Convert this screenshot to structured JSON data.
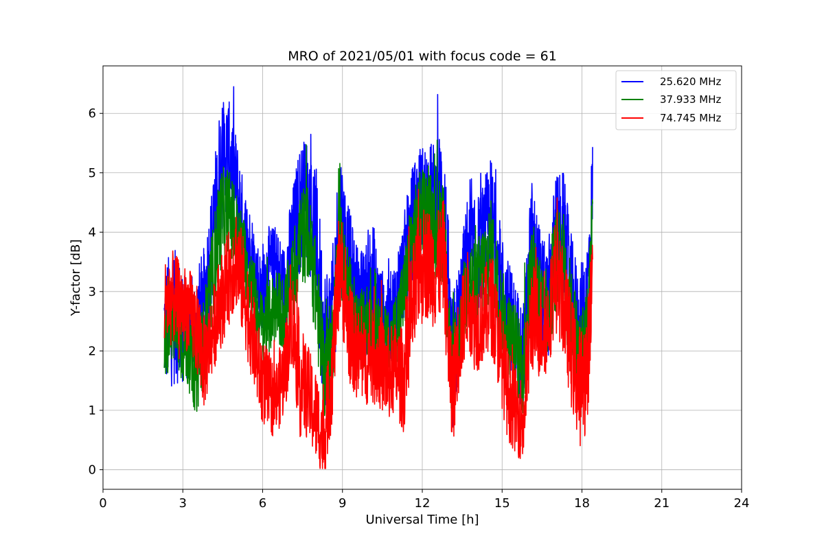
{
  "chart_data": {
    "type": "line",
    "title": "MRO of 2021/05/01 with focus code = 61",
    "xlabel": "Universal Time [h]",
    "ylabel": "Y-factor [dB]",
    "xlim": [
      0,
      24
    ],
    "ylim": [
      -0.33,
      6.8
    ],
    "x_ticks": [
      0,
      3,
      6,
      9,
      12,
      15,
      18,
      21,
      24
    ],
    "y_ticks": [
      0,
      1,
      2,
      3,
      4,
      5,
      6
    ],
    "grid": true,
    "legend_position": "top-right",
    "series": [
      {
        "name": "25.620 MHz",
        "color": "#0000ff",
        "x": [
          2.3,
          2.6,
          2.9,
          3.2,
          3.5,
          3.8,
          4.1,
          4.4,
          4.7,
          5.0,
          5.3,
          5.6,
          5.9,
          6.2,
          6.5,
          6.8,
          7.1,
          7.4,
          7.7,
          8.0,
          8.3,
          8.6,
          8.9,
          9.2,
          9.5,
          9.8,
          10.1,
          10.4,
          10.7,
          11.0,
          11.3,
          11.6,
          11.9,
          12.2,
          12.5,
          12.8,
          13.1,
          13.4,
          13.7,
          14.0,
          14.3,
          14.6,
          14.9,
          15.2,
          15.5,
          15.8,
          16.1,
          16.4,
          16.7,
          17.0,
          17.3,
          17.6,
          17.9,
          18.2,
          18.4
        ],
        "center": [
          2.4,
          2.6,
          2.5,
          2.3,
          2.4,
          2.8,
          3.8,
          5.0,
          5.4,
          4.8,
          4.0,
          3.6,
          3.0,
          3.3,
          3.4,
          3.0,
          3.8,
          4.4,
          4.6,
          3.8,
          2.2,
          2.5,
          4.3,
          3.5,
          2.9,
          2.8,
          3.1,
          2.6,
          2.4,
          2.8,
          3.4,
          4.1,
          4.6,
          4.7,
          4.5,
          4.6,
          1.6,
          2.6,
          3.6,
          3.5,
          3.9,
          4.2,
          3.2,
          2.7,
          2.3,
          1.8,
          3.7,
          3.1,
          2.7,
          3.8,
          4.0,
          3.0,
          2.3,
          2.9,
          4.6
        ],
        "spread": [
          1.3,
          1.5,
          1.3,
          1.0,
          1.2,
          1.2,
          1.3,
          1.5,
          1.1,
          1.1,
          1.0,
          0.9,
          0.9,
          1.0,
          0.9,
          1.0,
          1.1,
          1.4,
          1.3,
          1.7,
          1.6,
          1.3,
          1.6,
          1.3,
          1.2,
          1.1,
          1.6,
          1.1,
          1.0,
          1.0,
          1.1,
          1.2,
          1.1,
          1.0,
          1.3,
          1.6,
          1.6,
          1.2,
          1.3,
          1.3,
          1.2,
          1.4,
          1.2,
          1.1,
          1.1,
          1.2,
          1.6,
          1.3,
          1.2,
          1.5,
          1.3,
          1.2,
          1.3,
          1.3,
          1.3
        ]
      },
      {
        "name": "37.933 MHz",
        "color": "#008000",
        "x": [
          2.3,
          2.6,
          2.9,
          3.2,
          3.5,
          3.8,
          4.1,
          4.4,
          4.7,
          5.0,
          5.3,
          5.6,
          5.9,
          6.2,
          6.5,
          6.8,
          7.1,
          7.4,
          7.7,
          8.0,
          8.3,
          8.6,
          8.9,
          9.2,
          9.5,
          9.8,
          10.1,
          10.4,
          10.7,
          11.0,
          11.3,
          11.6,
          11.9,
          12.2,
          12.5,
          12.8,
          13.1,
          13.4,
          13.7,
          14.0,
          14.3,
          14.6,
          14.9,
          15.2,
          15.5,
          15.8,
          16.1,
          16.4,
          16.7,
          17.0,
          17.3,
          17.6,
          17.9,
          18.2,
          18.4
        ],
        "center": [
          2.2,
          2.5,
          2.2,
          2.0,
          1.6,
          2.2,
          3.2,
          4.2,
          4.4,
          4.0,
          3.6,
          3.1,
          2.4,
          2.5,
          2.8,
          2.6,
          3.1,
          3.9,
          4.0,
          3.0,
          1.6,
          2.1,
          3.8,
          3.0,
          2.4,
          2.3,
          2.6,
          2.4,
          2.0,
          2.4,
          2.9,
          3.8,
          4.3,
          4.4,
          4.0,
          4.1,
          1.6,
          2.2,
          3.2,
          3.0,
          3.4,
          3.7,
          2.8,
          2.3,
          2.1,
          1.6,
          3.4,
          2.9,
          2.4,
          3.5,
          3.6,
          2.6,
          1.8,
          2.2,
          4.2
        ],
        "spread": [
          0.9,
          0.9,
          0.9,
          0.8,
          0.9,
          0.9,
          1.0,
          1.1,
          0.9,
          0.9,
          0.8,
          0.8,
          0.8,
          0.8,
          0.8,
          0.8,
          0.9,
          1.1,
          1.0,
          1.1,
          1.1,
          1.0,
          1.1,
          1.0,
          0.9,
          0.9,
          1.2,
          0.9,
          0.8,
          0.8,
          0.9,
          1.0,
          0.9,
          0.9,
          1.0,
          1.2,
          1.1,
          0.9,
          1.0,
          1.0,
          1.0,
          1.1,
          1.0,
          0.9,
          0.9,
          1.0,
          1.2,
          1.0,
          0.9,
          1.1,
          1.0,
          1.0,
          1.2,
          1.2,
          0.9
        ]
      },
      {
        "name": "74.745 MHz",
        "color": "#ff0000",
        "x": [
          2.3,
          2.6,
          2.9,
          3.2,
          3.5,
          3.8,
          4.1,
          4.4,
          4.7,
          5.0,
          5.3,
          5.6,
          5.9,
          6.2,
          6.5,
          6.8,
          7.1,
          7.4,
          7.7,
          8.0,
          8.3,
          8.6,
          8.9,
          9.2,
          9.5,
          9.8,
          10.1,
          10.4,
          10.7,
          11.0,
          11.3,
          11.6,
          11.9,
          12.2,
          12.5,
          12.8,
          13.1,
          13.4,
          13.7,
          14.0,
          14.3,
          14.6,
          14.9,
          15.2,
          15.5,
          15.8,
          16.1,
          16.4,
          16.7,
          17.0,
          17.3,
          17.6,
          17.9,
          18.2,
          18.4
        ],
        "center": [
          2.8,
          2.9,
          2.8,
          2.7,
          2.4,
          1.8,
          2.3,
          2.8,
          3.2,
          3.6,
          3.0,
          2.3,
          1.6,
          1.3,
          1.2,
          1.6,
          2.6,
          1.5,
          1.3,
          0.9,
          0.5,
          1.6,
          3.6,
          2.4,
          2.0,
          1.8,
          1.9,
          1.8,
          1.6,
          1.7,
          1.5,
          2.6,
          3.4,
          3.5,
          3.3,
          3.6,
          1.2,
          2.2,
          2.9,
          2.4,
          2.6,
          2.8,
          2.1,
          1.3,
          1.0,
          0.8,
          2.6,
          2.4,
          2.4,
          3.3,
          2.8,
          2.0,
          1.4,
          1.7,
          3.4
        ],
        "spread": [
          1.0,
          1.0,
          0.9,
          0.9,
          1.0,
          1.0,
          0.9,
          1.0,
          1.0,
          1.1,
          1.1,
          1.0,
          0.9,
          0.9,
          0.8,
          0.9,
          1.1,
          1.2,
          1.0,
          1.0,
          0.9,
          1.1,
          1.2,
          1.1,
          1.0,
          0.9,
          1.0,
          1.0,
          1.0,
          1.0,
          1.1,
          1.3,
          1.3,
          1.2,
          1.2,
          1.2,
          1.2,
          1.1,
          1.0,
          1.0,
          1.0,
          1.1,
          1.0,
          1.0,
          0.9,
          0.9,
          1.2,
          1.1,
          1.0,
          1.2,
          1.1,
          1.2,
          1.3,
          1.3,
          1.0
        ]
      }
    ]
  }
}
